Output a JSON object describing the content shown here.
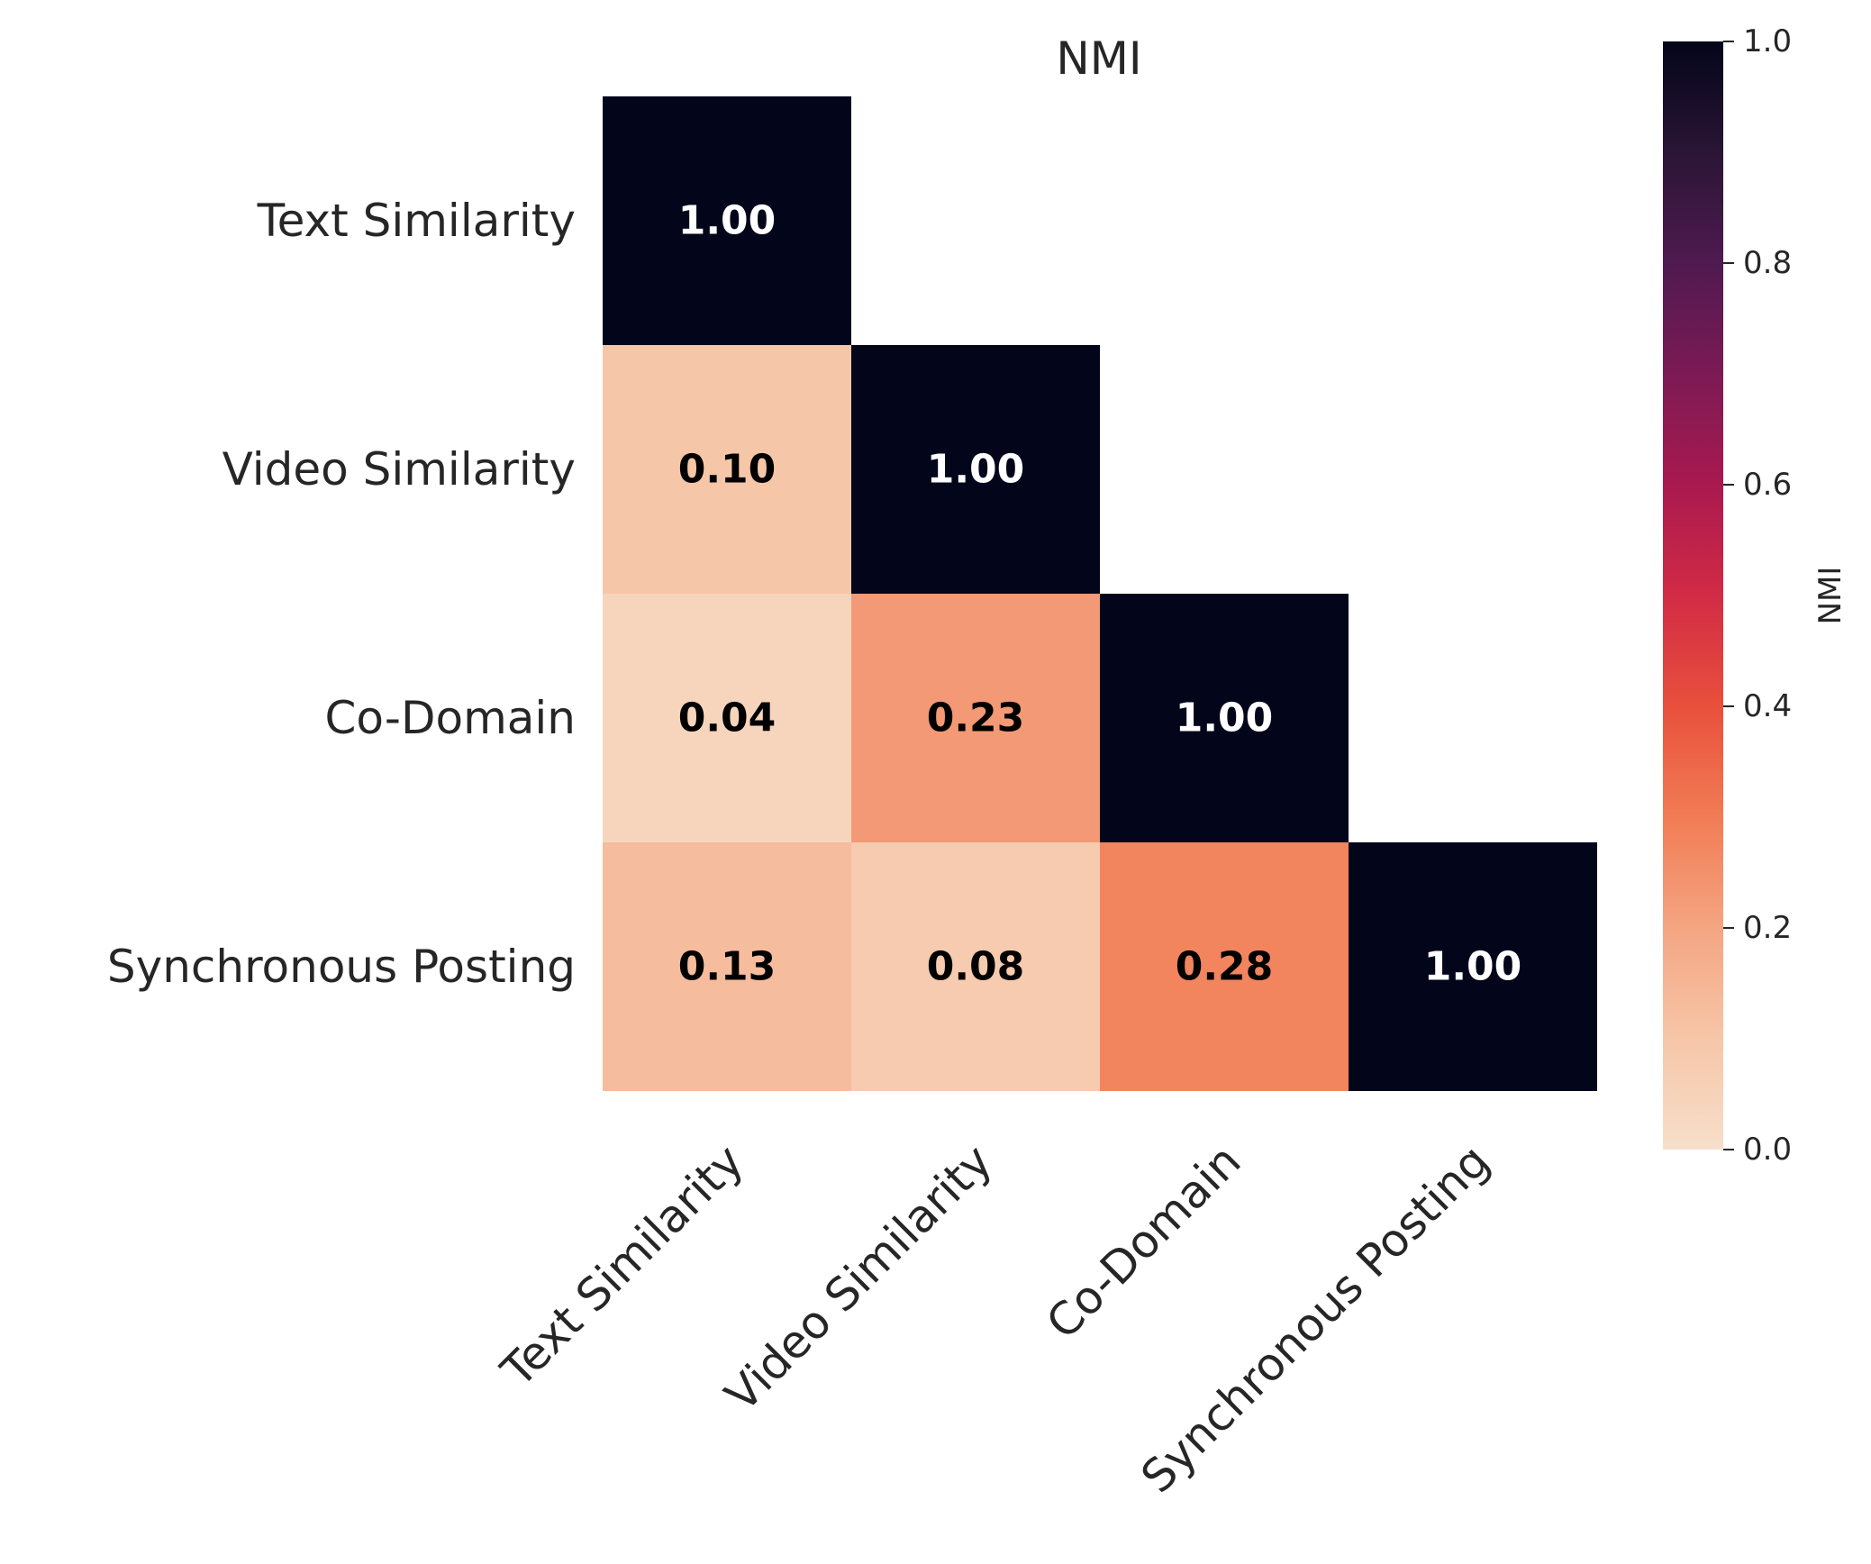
{
  "chart_data": {
    "type": "heatmap",
    "title": "NMI",
    "rows": [
      "Text Similarity",
      "Video Similarity",
      "Co-Domain",
      "Synchronous Posting"
    ],
    "cols": [
      "Text Similarity",
      "Video Similarity",
      "Co-Domain",
      "Synchronous Posting"
    ],
    "matrix": [
      [
        1.0,
        null,
        null,
        null
      ],
      [
        0.1,
        1.0,
        null,
        null
      ],
      [
        0.04,
        0.23,
        1.0,
        null
      ],
      [
        0.13,
        0.08,
        0.28,
        1.0
      ]
    ],
    "annotations": [
      [
        "1.00",
        null,
        null,
        null
      ],
      [
        "0.10",
        "1.00",
        null,
        null
      ],
      [
        "0.04",
        "0.23",
        "1.00",
        null
      ],
      [
        "0.13",
        "0.08",
        "0.28",
        "1.00"
      ]
    ],
    "colorbar": {
      "label": "NMI",
      "range": [
        0.0,
        1.0
      ],
      "ticks": [
        "0.0",
        "0.2",
        "0.4",
        "0.6",
        "0.8",
        "1.0"
      ],
      "colormap": "rocket_r"
    }
  }
}
